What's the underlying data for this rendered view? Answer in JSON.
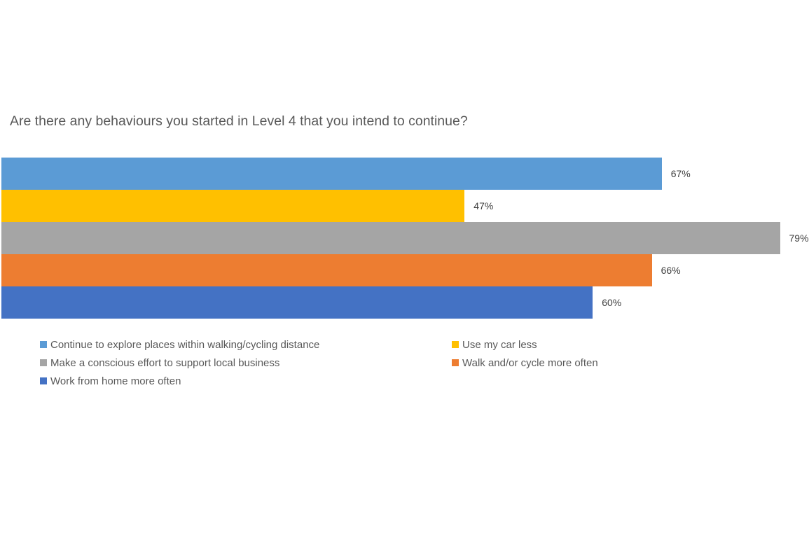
{
  "title": "Are there any behaviours you started in Level 4 that you intend to continue?",
  "chart_data": {
    "type": "bar",
    "orientation": "horizontal",
    "title": "Are there any behaviours you started in Level 4 that you intend to continue?",
    "categories": [
      "Continue to explore places within walking/cycling distance",
      "Use my car less",
      "Make a conscious effort to support local business",
      "Walk and/or cycle more often",
      "Work from home more often"
    ],
    "values": [
      67,
      47,
      79,
      66,
      60
    ],
    "value_labels": [
      "67%",
      "47%",
      "79%",
      "66%",
      "60%"
    ],
    "colors": [
      "#5B9BD5",
      "#FFC000",
      "#A5A5A5",
      "#ED7D31",
      "#4472C4"
    ],
    "xlabel": "",
    "ylabel": "",
    "xlim": [
      0,
      100
    ],
    "grid": false,
    "axes_visible": false,
    "legend_position": "bottom",
    "legend": [
      {
        "label": "Continue to explore places within walking/cycling distance",
        "color": "#5B9BD5"
      },
      {
        "label": "Use my car less",
        "color": "#FFC000"
      },
      {
        "label": "Make a conscious effort to support local business",
        "color": "#A5A5A5"
      },
      {
        "label": "Walk and/or cycle more often",
        "color": "#ED7D31"
      },
      {
        "label": "Work from home more often",
        "color": "#4472C4"
      }
    ]
  },
  "styles": {
    "background": "#FFFFFF",
    "title_color": "#595959",
    "value_label_color": "#404040",
    "legend_text_color": "#595959"
  }
}
